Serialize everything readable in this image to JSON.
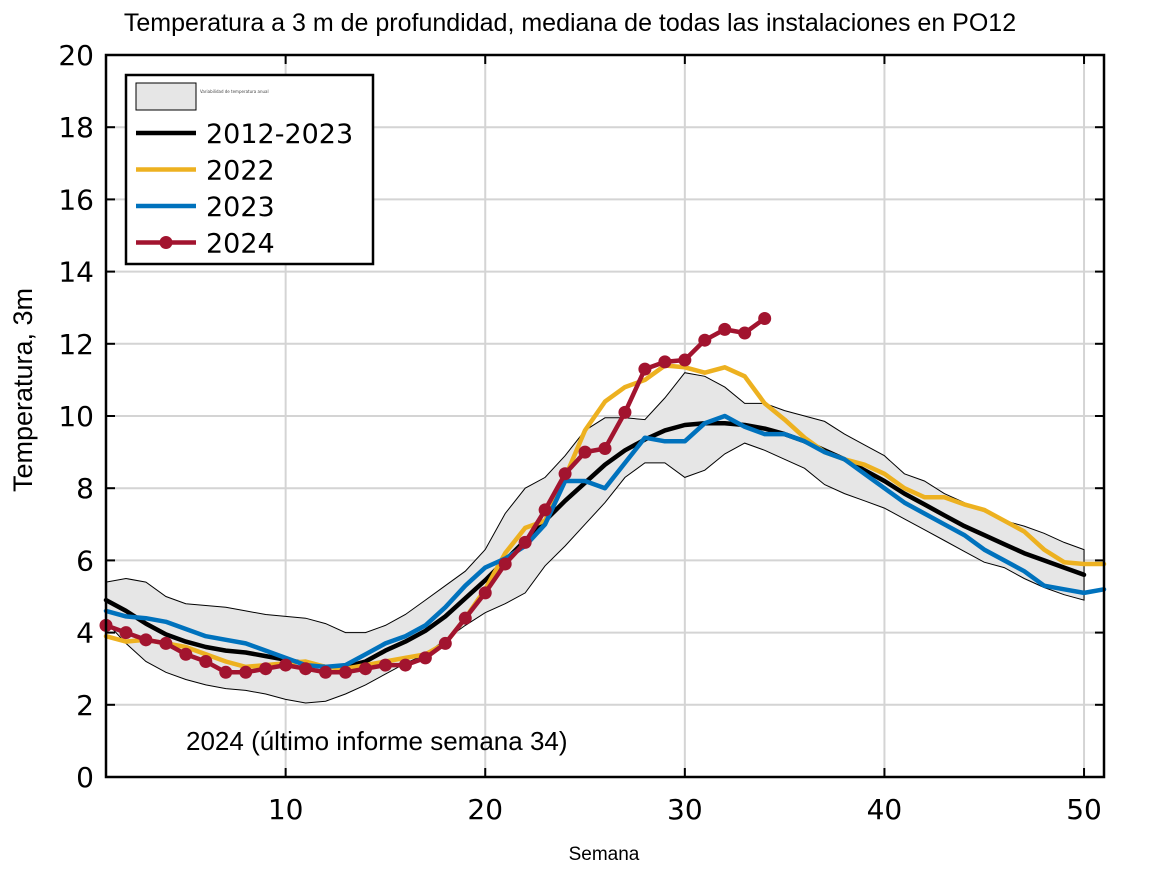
{
  "chart_data": {
    "type": "line",
    "title": "Temperatura a 3 m de profundidad, mediana de todas las instalaciones en PO12",
    "xlabel": "Semana",
    "ylabel": "Temperatura, 3m",
    "annotation": "2024 (último informe semana 34)",
    "xlim": [
      1,
      51
    ],
    "ylim": [
      0,
      20
    ],
    "xticks": [
      10,
      20,
      30,
      40,
      50
    ],
    "yticks": [
      0,
      2,
      4,
      6,
      8,
      10,
      12,
      14,
      16,
      18,
      20
    ],
    "grid": true,
    "legend_position": "top-left",
    "legend_band_label": "Variabilidad de temperatura anual",
    "band": {
      "name": "",
      "color": "#e6e6e6",
      "x": [
        1,
        2,
        3,
        4,
        5,
        6,
        7,
        8,
        9,
        10,
        11,
        12,
        13,
        14,
        15,
        16,
        17,
        18,
        19,
        20,
        21,
        22,
        23,
        24,
        25,
        26,
        27,
        28,
        29,
        30,
        31,
        32,
        33,
        34,
        35,
        36,
        37,
        38,
        39,
        40,
        41,
        42,
        43,
        44,
        45,
        46,
        47,
        48,
        49,
        50
      ],
      "upper": [
        5.4,
        5.5,
        5.4,
        5.0,
        4.8,
        4.75,
        4.7,
        4.6,
        4.5,
        4.45,
        4.4,
        4.25,
        4.0,
        4.0,
        4.2,
        4.5,
        4.9,
        5.3,
        5.7,
        6.3,
        7.3,
        8.0,
        8.3,
        8.9,
        9.6,
        9.95,
        9.95,
        9.9,
        10.5,
        11.2,
        11.1,
        10.8,
        10.35,
        10.35,
        10.15,
        10.0,
        9.85,
        9.5,
        9.2,
        8.9,
        8.4,
        8.2,
        7.85,
        7.6,
        7.35,
        7.1,
        6.95,
        6.75,
        6.5,
        6.3
      ],
      "lower": [
        4.3,
        3.7,
        3.2,
        2.9,
        2.7,
        2.55,
        2.45,
        2.4,
        2.3,
        2.15,
        2.05,
        2.1,
        2.3,
        2.55,
        2.85,
        3.15,
        3.4,
        3.8,
        4.2,
        4.55,
        4.8,
        5.1,
        5.85,
        6.4,
        7.0,
        7.6,
        8.3,
        8.7,
        8.7,
        8.3,
        8.5,
        8.95,
        9.25,
        9.05,
        8.8,
        8.55,
        8.1,
        7.85,
        7.65,
        7.45,
        7.15,
        6.85,
        6.55,
        6.25,
        5.95,
        5.8,
        5.5,
        5.25,
        5.05,
        4.9
      ]
    },
    "series": [
      {
        "name": "2012-2023",
        "color": "#000000",
        "markers": false,
        "x": [
          1,
          2,
          3,
          4,
          5,
          6,
          7,
          8,
          9,
          10,
          11,
          12,
          13,
          14,
          15,
          16,
          17,
          18,
          19,
          20,
          21,
          22,
          23,
          24,
          25,
          26,
          27,
          28,
          29,
          30,
          31,
          32,
          33,
          34,
          35,
          36,
          37,
          38,
          39,
          40,
          41,
          42,
          43,
          44,
          45,
          46,
          47,
          48,
          49,
          50
        ],
        "values": [
          4.9,
          4.6,
          4.25,
          3.95,
          3.75,
          3.6,
          3.5,
          3.45,
          3.35,
          3.25,
          3.15,
          3.05,
          3.05,
          3.2,
          3.5,
          3.75,
          4.05,
          4.45,
          4.95,
          5.45,
          6.0,
          6.55,
          7.1,
          7.65,
          8.15,
          8.65,
          9.05,
          9.35,
          9.6,
          9.75,
          9.8,
          9.8,
          9.75,
          9.65,
          9.5,
          9.3,
          9.05,
          8.8,
          8.5,
          8.2,
          7.85,
          7.55,
          7.25,
          6.95,
          6.7,
          6.45,
          6.2,
          6.0,
          5.8,
          5.6
        ]
      },
      {
        "name": "2022",
        "color": "#EDB120",
        "markers": false,
        "x": [
          1,
          2,
          3,
          4,
          5,
          6,
          7,
          8,
          9,
          10,
          11,
          12,
          13,
          14,
          15,
          16,
          17,
          18,
          19,
          20,
          21,
          22,
          23,
          24,
          25,
          26,
          27,
          28,
          29,
          30,
          31,
          32,
          33,
          34,
          35,
          36,
          37,
          38,
          39,
          40,
          41,
          42,
          43,
          44,
          45,
          46,
          47,
          48,
          49,
          50,
          51
        ],
        "values": [
          3.9,
          3.75,
          3.8,
          3.7,
          3.6,
          3.4,
          3.2,
          3.05,
          3.1,
          3.15,
          3.2,
          3.05,
          3.0,
          3.1,
          3.2,
          3.3,
          3.4,
          3.7,
          4.4,
          5.2,
          6.2,
          6.9,
          7.1,
          8.3,
          9.6,
          10.4,
          10.8,
          11.0,
          11.4,
          11.35,
          11.2,
          11.35,
          11.1,
          10.35,
          9.9,
          9.4,
          9.0,
          8.8,
          8.65,
          8.4,
          8.0,
          7.75,
          7.75,
          7.55,
          7.4,
          7.1,
          6.8,
          6.3,
          5.95,
          5.9,
          5.9
        ]
      },
      {
        "name": "2023",
        "color": "#0072BD",
        "markers": false,
        "x": [
          1,
          2,
          3,
          4,
          5,
          6,
          7,
          8,
          9,
          10,
          11,
          12,
          13,
          14,
          15,
          16,
          17,
          18,
          19,
          20,
          21,
          22,
          23,
          24,
          25,
          26,
          27,
          28,
          29,
          30,
          31,
          32,
          33,
          34,
          35,
          36,
          37,
          38,
          39,
          40,
          41,
          42,
          43,
          44,
          45,
          46,
          47,
          48,
          49,
          50,
          51
        ],
        "values": [
          4.6,
          4.45,
          4.4,
          4.3,
          4.1,
          3.9,
          3.8,
          3.7,
          3.5,
          3.3,
          3.1,
          3.05,
          3.1,
          3.4,
          3.7,
          3.9,
          4.2,
          4.7,
          5.3,
          5.8,
          6.05,
          6.4,
          7.0,
          8.2,
          8.2,
          8.0,
          8.7,
          9.4,
          9.3,
          9.3,
          9.8,
          10.0,
          9.7,
          9.5,
          9.5,
          9.3,
          9.0,
          8.8,
          8.4,
          8.0,
          7.6,
          7.3,
          7.0,
          6.7,
          6.3,
          6.0,
          5.7,
          5.3,
          5.2,
          5.1,
          5.2
        ]
      },
      {
        "name": "2024",
        "color": "#A2142F",
        "markers": true,
        "x": [
          1,
          2,
          3,
          4,
          5,
          6,
          7,
          8,
          9,
          10,
          11,
          12,
          13,
          14,
          15,
          16,
          17,
          18,
          19,
          20,
          21,
          22,
          23,
          24,
          25,
          26,
          27,
          28,
          29,
          30,
          31,
          32,
          33,
          34
        ],
        "values": [
          4.2,
          4.0,
          3.8,
          3.7,
          3.4,
          3.2,
          2.9,
          2.9,
          3.0,
          3.1,
          3.0,
          2.9,
          2.9,
          3.0,
          3.1,
          3.1,
          3.3,
          3.7,
          4.4,
          5.1,
          5.9,
          6.5,
          7.4,
          8.4,
          9.0,
          9.1,
          10.1,
          11.3,
          11.5,
          11.55,
          12.1,
          12.4,
          12.3,
          12.7
        ]
      }
    ]
  }
}
